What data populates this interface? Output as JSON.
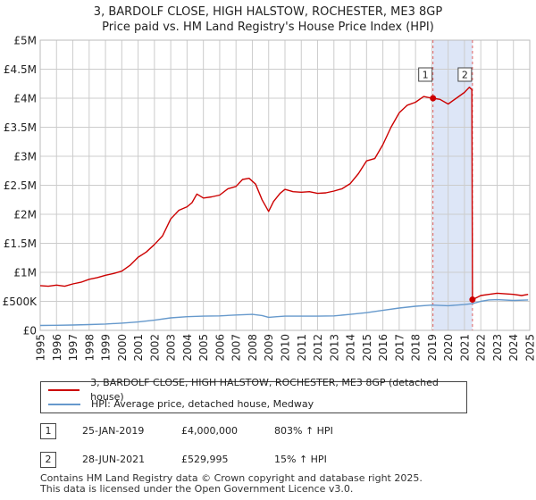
{
  "title_line1": "3, BARDOLF CLOSE, HIGH HALSTOW, ROCHESTER, ME3 8GP",
  "title_line2": "Price paid vs. HM Land Registry's House Price Index (HPI)",
  "colors": {
    "property": "#cc0000",
    "hpi": "#6699cc",
    "shade": "#dde6f7",
    "grid": "#cccccc"
  },
  "legend": {
    "property_label": "3, BARDOLF CLOSE, HIGH HALSTOW, ROCHESTER, ME3 8GP (detached house)",
    "hpi_label": "HPI: Average price, detached house, Medway"
  },
  "sales": [
    {
      "num": "1",
      "date": "25-JAN-2019",
      "price": "£4,000,000",
      "hpi": "803% ↑ HPI"
    },
    {
      "num": "2",
      "date": "28-JUN-2021",
      "price": "£529,995",
      "hpi": "15% ↑ HPI"
    }
  ],
  "footer_line1": "Contains HM Land Registry data © Crown copyright and database right 2025.",
  "footer_line2": "This data is licensed under the Open Government Licence v3.0.",
  "chart_data": {
    "type": "line",
    "title": "3, BARDOLF CLOSE, HIGH HALSTOW, ROCHESTER, ME3 8GP — Price paid vs. HM Land Registry's House Price Index (HPI)",
    "xlabel": "",
    "ylabel": "",
    "xlim": [
      1995,
      2025
    ],
    "ylim": [
      0,
      5000000
    ],
    "y_ticks": [
      0,
      500000,
      1000000,
      1500000,
      2000000,
      2500000,
      3000000,
      3500000,
      4000000,
      4500000,
      5000000
    ],
    "y_tick_labels": [
      "£0",
      "£500K",
      "£1M",
      "£1.5M",
      "£2M",
      "£2.5M",
      "£3M",
      "£3.5M",
      "£4M",
      "£4.5M",
      "£5M"
    ],
    "x_ticks": [
      1995,
      1996,
      1997,
      1998,
      1999,
      2000,
      2001,
      2002,
      2003,
      2004,
      2005,
      2006,
      2007,
      2008,
      2009,
      2010,
      2011,
      2012,
      2013,
      2014,
      2015,
      2016,
      2017,
      2018,
      2019,
      2020,
      2021,
      2022,
      2023,
      2024,
      2025
    ],
    "x_tick_labels": [
      "1995",
      "1996",
      "1997",
      "1998",
      "1999",
      "2000",
      "2001",
      "2002",
      "2003",
      "2004",
      "2005",
      "2006",
      "2007",
      "2008",
      "2009",
      "2010",
      "2011",
      "2012",
      "2013",
      "2014",
      "2015",
      "2016",
      "2017",
      "2018",
      "2019",
      "2020",
      "2021",
      "2022",
      "2023",
      "2024",
      "2025"
    ],
    "shaded_range": [
      2019.07,
      2021.49
    ],
    "sale_markers": [
      {
        "label": "1",
        "x": 2019.07,
        "y": 4000000
      },
      {
        "label": "2",
        "x": 2021.49,
        "y": 529995
      }
    ],
    "series": [
      {
        "name": "3, BARDOLF CLOSE, HIGH HALSTOW, ROCHESTER, ME3 8GP (detached house)",
        "x": [
          1995.0,
          1995.5,
          1996.0,
          1996.5,
          1997.0,
          1997.5,
          1998.0,
          1998.5,
          1999.0,
          1999.5,
          2000.0,
          2000.5,
          2001.0,
          2001.5,
          2002.0,
          2002.5,
          2003.0,
          2003.5,
          2004.0,
          2004.3,
          2004.6,
          2005.0,
          2005.5,
          2006.0,
          2006.5,
          2007.0,
          2007.4,
          2007.8,
          2008.2,
          2008.6,
          2009.0,
          2009.3,
          2009.7,
          2010.0,
          2010.5,
          2011.0,
          2011.5,
          2012.0,
          2012.5,
          2013.0,
          2013.5,
          2014.0,
          2014.5,
          2015.0,
          2015.5,
          2016.0,
          2016.5,
          2017.0,
          2017.5,
          2018.0,
          2018.5,
          2019.0,
          2019.07,
          2019.5,
          2020.0,
          2020.5,
          2021.0,
          2021.3,
          2021.45,
          2021.49,
          2022.0,
          2022.5,
          2023.0,
          2023.5,
          2024.0,
          2024.5,
          2024.9
        ],
        "y": [
          770000,
          760000,
          780000,
          760000,
          800000,
          830000,
          880000,
          910000,
          950000,
          980000,
          1020000,
          1120000,
          1260000,
          1350000,
          1480000,
          1630000,
          1920000,
          2070000,
          2130000,
          2200000,
          2350000,
          2280000,
          2300000,
          2330000,
          2440000,
          2480000,
          2600000,
          2620000,
          2520000,
          2250000,
          2050000,
          2220000,
          2360000,
          2430000,
          2390000,
          2380000,
          2390000,
          2360000,
          2370000,
          2400000,
          2440000,
          2530000,
          2700000,
          2920000,
          2960000,
          3200000,
          3500000,
          3750000,
          3880000,
          3930000,
          4030000,
          4000000,
          4000000,
          3980000,
          3900000,
          4000000,
          4100000,
          4190000,
          4150000,
          529995,
          600000,
          620000,
          640000,
          630000,
          620000,
          600000,
          620000
        ]
      },
      {
        "name": "HPI: Average price, detached house, Medway",
        "x": [
          1995.0,
          1996.0,
          1997.0,
          1998.0,
          1999.0,
          2000.0,
          2001.0,
          2002.0,
          2003.0,
          2004.0,
          2005.0,
          2006.0,
          2007.0,
          2008.0,
          2008.6,
          2009.0,
          2009.5,
          2010.0,
          2011.0,
          2012.0,
          2013.0,
          2014.0,
          2015.0,
          2016.0,
          2017.0,
          2018.0,
          2019.0,
          2020.0,
          2021.0,
          2021.49,
          2022.0,
          2022.5,
          2023.0,
          2024.0,
          2024.9
        ],
        "y": [
          85000,
          87000,
          92000,
          100000,
          110000,
          125000,
          145000,
          175000,
          215000,
          235000,
          245000,
          250000,
          265000,
          275000,
          255000,
          225000,
          235000,
          245000,
          245000,
          245000,
          250000,
          275000,
          305000,
          345000,
          385000,
          415000,
          435000,
          425000,
          445000,
          460000,
          500000,
          525000,
          530000,
          515000,
          525000
        ]
      }
    ]
  }
}
